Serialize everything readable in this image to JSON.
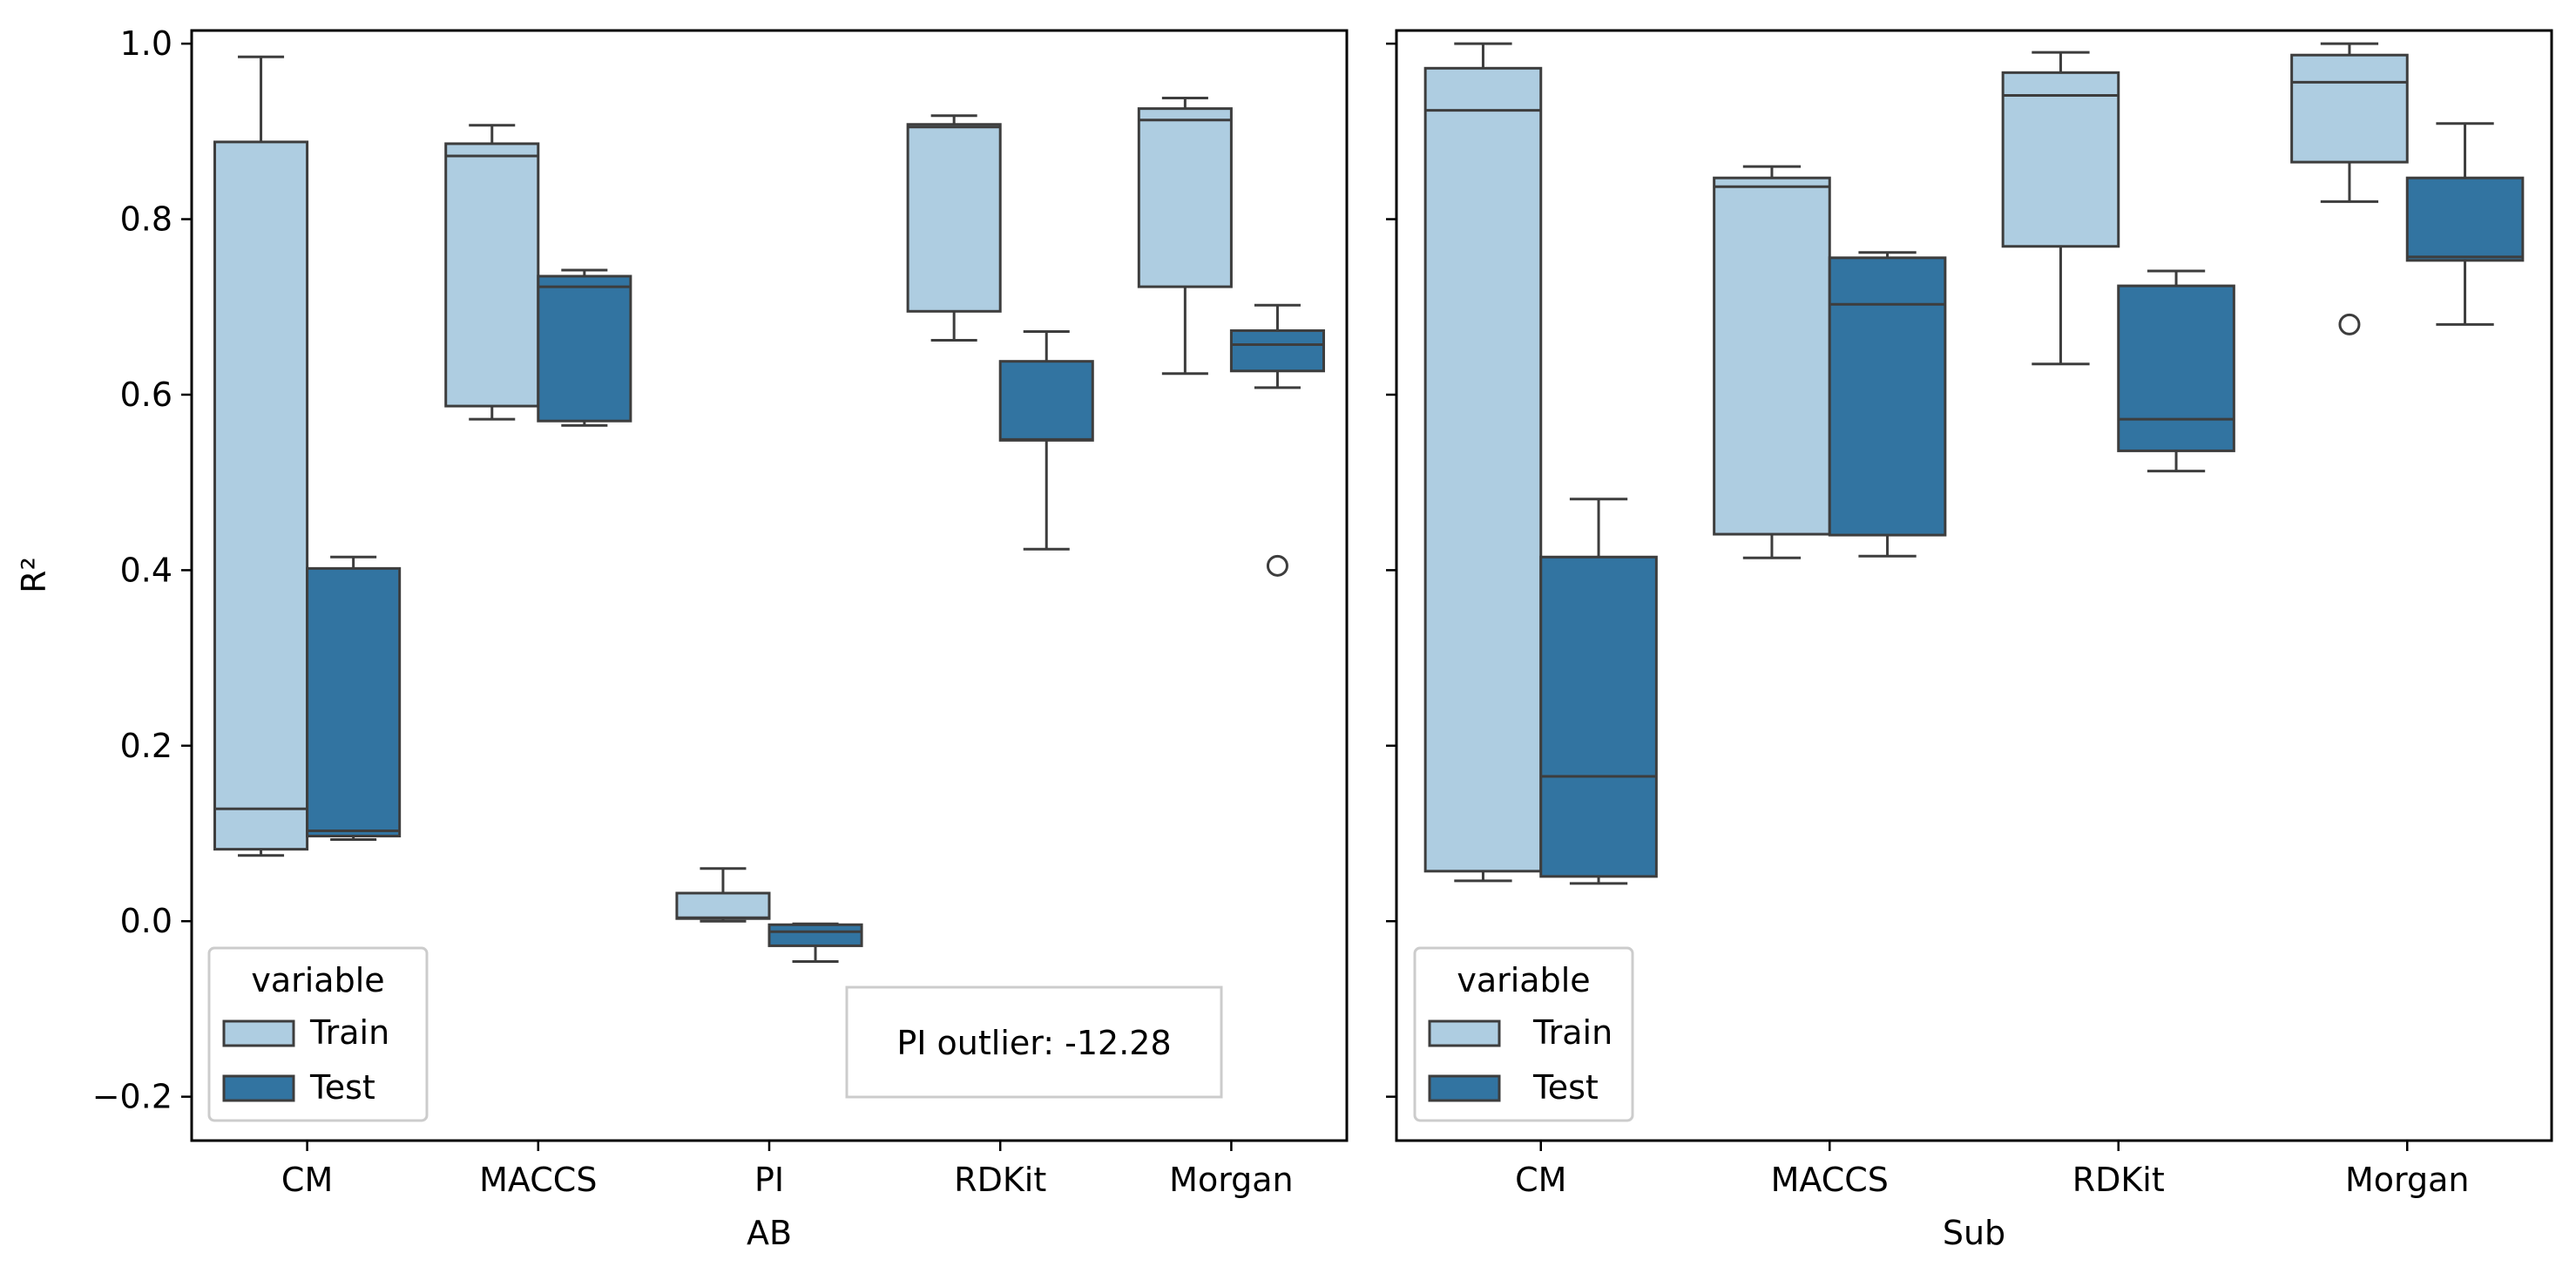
{
  "chart_data": [
    {
      "type": "box",
      "xlabel": "AB",
      "ylabel": "R²",
      "ylim": [
        -0.25,
        1.015
      ],
      "yticks": [
        -0.2,
        0.0,
        0.2,
        0.4,
        0.6,
        0.8,
        1.0
      ],
      "ytick_labels": [
        "−0.2",
        "0.0",
        "0.2",
        "0.4",
        "0.6",
        "0.8",
        "1.0"
      ],
      "categories": [
        "CM",
        "MACCS",
        "PI",
        "RDKit",
        "Morgan"
      ],
      "legend": {
        "title": "variable",
        "position": "lower-left"
      },
      "annotation": "PI outlier: -12.28",
      "series": [
        {
          "name": "Train",
          "color": "#aecde1",
          "boxes": [
            {
              "whislo": 0.075,
              "q1": 0.082,
              "med": 0.128,
              "q3": 0.888,
              "whishi": 0.985,
              "fliers": []
            },
            {
              "whislo": 0.572,
              "q1": 0.587,
              "med": 0.872,
              "q3": 0.886,
              "whishi": 0.907,
              "fliers": []
            },
            {
              "whislo": 0.0,
              "q1": 0.003,
              "med": 0.004,
              "q3": 0.032,
              "whishi": 0.06,
              "fliers": []
            },
            {
              "whislo": 0.662,
              "q1": 0.695,
              "med": 0.905,
              "q3": 0.908,
              "whishi": 0.918,
              "fliers": []
            },
            {
              "whislo": 0.624,
              "q1": 0.723,
              "med": 0.913,
              "q3": 0.926,
              "whishi": 0.938,
              "fliers": []
            }
          ]
        },
        {
          "name": "Test",
          "color": "#3274a1",
          "boxes": [
            {
              "whislo": 0.093,
              "q1": 0.097,
              "med": 0.103,
              "q3": 0.402,
              "whishi": 0.415,
              "fliers": []
            },
            {
              "whislo": 0.565,
              "q1": 0.57,
              "med": 0.723,
              "q3": 0.735,
              "whishi": 0.742,
              "fliers": []
            },
            {
              "whislo": -0.046,
              "q1": -0.028,
              "med": -0.012,
              "q3": -0.004,
              "whishi": -0.003,
              "fliers": []
            },
            {
              "whislo": 0.424,
              "q1": 0.548,
              "med": 0.549,
              "q3": 0.638,
              "whishi": 0.672,
              "fliers": []
            },
            {
              "whislo": 0.608,
              "q1": 0.627,
              "med": 0.657,
              "q3": 0.673,
              "whishi": 0.702,
              "fliers": [
                0.405
              ]
            }
          ]
        }
      ]
    },
    {
      "type": "box",
      "xlabel": "Sub",
      "ylabel": "",
      "ylim": [
        -0.25,
        1.015
      ],
      "shared_y": true,
      "categories": [
        "CM",
        "MACCS",
        "RDKit",
        "Morgan"
      ],
      "legend": {
        "title": "variable",
        "position": "lower-left"
      },
      "series": [
        {
          "name": "Train",
          "color": "#aecde1",
          "boxes": [
            {
              "whislo": 0.046,
              "q1": 0.057,
              "med": 0.924,
              "q3": 0.972,
              "whishi": 1.0,
              "fliers": []
            },
            {
              "whislo": 0.414,
              "q1": 0.441,
              "med": 0.837,
              "q3": 0.847,
              "whishi": 0.86,
              "fliers": []
            },
            {
              "whislo": 0.635,
              "q1": 0.769,
              "med": 0.941,
              "q3": 0.967,
              "whishi": 0.99,
              "fliers": []
            },
            {
              "whislo": 0.82,
              "q1": 0.865,
              "med": 0.956,
              "q3": 0.987,
              "whishi": 1.0,
              "fliers": [
                0.68
              ]
            }
          ]
        },
        {
          "name": "Test",
          "color": "#3274a1",
          "boxes": [
            {
              "whislo": 0.043,
              "q1": 0.051,
              "med": 0.165,
              "q3": 0.415,
              "whishi": 0.481,
              "fliers": []
            },
            {
              "whislo": 0.416,
              "q1": 0.44,
              "med": 0.703,
              "q3": 0.756,
              "whishi": 0.762,
              "fliers": []
            },
            {
              "whislo": 0.513,
              "q1": 0.536,
              "med": 0.572,
              "q3": 0.724,
              "whishi": 0.741,
              "fliers": []
            },
            {
              "whislo": 0.68,
              "q1": 0.753,
              "med": 0.757,
              "q3": 0.847,
              "whishi": 0.909,
              "fliers": []
            }
          ]
        }
      ]
    }
  ]
}
